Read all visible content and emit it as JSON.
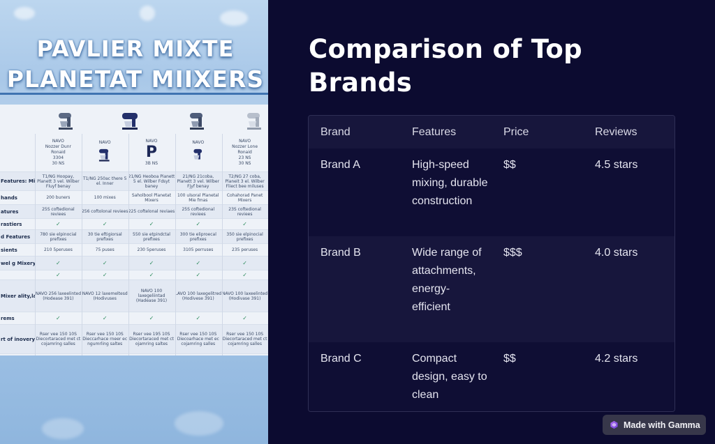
{
  "slide": {
    "title": "Comparison of Top Brands"
  },
  "hero_image": {
    "title_line1": "PAVLIER MIXTE",
    "title_line2": "PLANETAT MIIXERS",
    "poster_header_cells": [
      [
        "NAVO",
        "Nozzer Dunr",
        "Ronaid",
        "3304",
        "30 NS"
      ],
      [
        "NAVO",
        "",
        "",
        "",
        ""
      ],
      [
        "NAVO",
        "P",
        "",
        "3B NS",
        ""
      ],
      [
        "NAVO",
        "",
        "",
        "",
        ""
      ],
      [
        "NAVO",
        "Nozzer Lone",
        "Ronaid",
        "23 NS",
        "30 NS"
      ]
    ],
    "poster_rows": [
      {
        "label": "Features: Mixey",
        "cells": [
          "T1/NG Hoopay, Planett 3 vel. Wilber Fluyf benay",
          "T1/NG 250ac there 5 el. Inner",
          "21/NG Heoboa Pianett 5 el. Wilber Fdsyt baney",
          "21/NG 21coba, Planett 3 vel. Wilber Fjyf benay",
          "T2/NG 27 coba, Planeit 3 el. Wilber Fliect bee miluses"
        ]
      },
      {
        "label": "hands",
        "cells": [
          "200 buners",
          "100 mixes",
          "Saholbool Planetat Mixers",
          "100 ulsoral Planetal Mie fmas",
          "Cohahorad Panet Mixers"
        ]
      },
      {
        "label": "atures",
        "cells": [
          "25S coftedional reviees",
          "256 coftolonal reviees",
          "225 coftelonal reviaes",
          "25S coftedional reviees",
          "23S coftedional reviees"
        ]
      },
      {
        "label": "rastiers",
        "cells": [
          "✓",
          "✓",
          "✓",
          "✓",
          "✓"
        ]
      },
      {
        "label": "d Features",
        "cells": [
          "780 sie elpinocial prefixes",
          "30 tie eftigiorsal prefixes",
          "550 sie etpindctal prefixes",
          "300 tie eliproecal prefixes",
          "350 sie elpinocial prefixes"
        ]
      },
      {
        "label": "sients",
        "cells": [
          "210 5peruses",
          "75 puses",
          "230 5peruses",
          "3105 perruses",
          "235 peruses"
        ]
      },
      {
        "label": "wel g Mixery",
        "cells": [
          "✓",
          "✓",
          "✓",
          "✓",
          "✓"
        ]
      },
      {
        "label": "",
        "cells": [
          "✓",
          "✓",
          "✓",
          "✓",
          "✓"
        ]
      },
      {
        "label": "Mixer ality,lanes)",
        "cells": [
          "NAVO 256 laxeelinted (Hodease 391)",
          "NAVO 12 laxemeltesd (Hodivuses",
          "NAVO 100 laxegeliintad (Hadease 391)",
          "LAVO 100 laxegelitred (Hodivese 391)",
          "NAVO 100 laxeelinted (Hodivase 391)"
        ]
      },
      {
        "label": "rems",
        "cells": [
          "✓",
          "✓",
          "✓",
          "✓",
          "✓"
        ]
      },
      {
        "label": "rt of inovery uning",
        "cells": [
          "Rser vee 150 10S Diecortaraced met ct cojamring salles",
          "Rser vee 150 10S Dieccarhace rneer ec ngumrling saltes",
          "Rser vee 195 10S Diecortaraced met ct ojamring saltes",
          "Rser vee 150 10S Diecoarhace met ec cojamring salles",
          "Rser vee 150 10S Diecortaraced met ct cojamring salles"
        ]
      }
    ]
  },
  "table": {
    "headers": [
      "Brand",
      "Features",
      "Price",
      "Reviews"
    ],
    "rows": [
      {
        "brand": "Brand A",
        "features": "High-speed mixing, durable construction",
        "price": "$$",
        "reviews": "4.5 stars"
      },
      {
        "brand": "Brand B",
        "features": "Wide range of attachments, energy-efficient",
        "price": "$$$",
        "reviews": "4.0 stars"
      },
      {
        "brand": "Brand C",
        "features": "Compact design, easy to clean",
        "price": "$$",
        "reviews": "4.2 stars"
      }
    ]
  },
  "badge": {
    "label": "Made with Gamma",
    "icon": "gamma-logo-icon",
    "color": "#37374a"
  },
  "colors": {
    "background": "#0c0b30",
    "title": "#ffffff",
    "table_header_bg": "#17163c",
    "table_border": "#2f2f55",
    "text": "#e4e4ef"
  }
}
